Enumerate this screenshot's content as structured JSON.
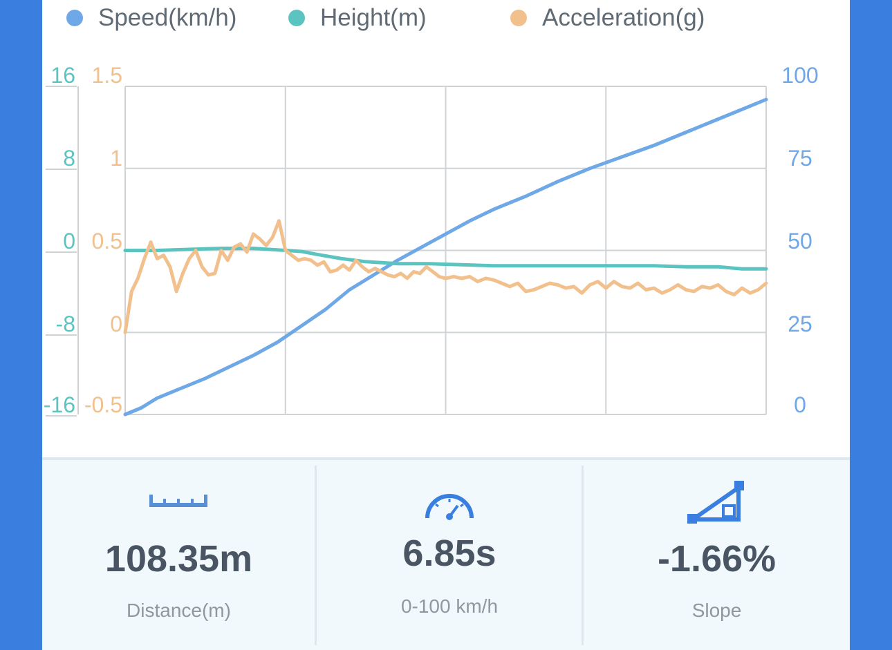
{
  "colors": {
    "speed": "#6fa8e6",
    "height": "#5cc4c0",
    "accel": "#f2c08c",
    "grid": "#cfd3d6",
    "accent": "#3a7fdf"
  },
  "legend": [
    {
      "label": "Speed(km/h)",
      "color": "#6fa8e6"
    },
    {
      "label": "Height(m)",
      "color": "#5cc4c0"
    },
    {
      "label": "Acceleration(g)",
      "color": "#f2c08c"
    }
  ],
  "chart_data": {
    "type": "line",
    "x_range": [
      0,
      4
    ],
    "axes": {
      "height_left": {
        "ticks": [
          "16",
          "8",
          "0",
          "-8",
          "-16"
        ],
        "range": [
          -16,
          16
        ]
      },
      "accel_left": {
        "ticks": [
          "1.5",
          "1",
          "0.5",
          "0",
          "-0.5"
        ],
        "range": [
          -0.5,
          1.5
        ]
      },
      "speed_right": {
        "ticks": [
          "100",
          "75",
          "50",
          "25",
          "0"
        ],
        "range": [
          0,
          100
        ]
      }
    },
    "grid": true,
    "series": [
      {
        "name": "Speed(km/h)",
        "axis": "speed_right",
        "x": [
          0,
          0.1,
          0.2,
          0.35,
          0.5,
          0.65,
          0.8,
          0.95,
          1.1,
          1.25,
          1.4,
          1.55,
          1.7,
          1.85,
          2.0,
          2.15,
          2.3,
          2.5,
          2.7,
          2.9,
          3.1,
          3.3,
          3.5,
          3.7,
          3.85,
          4.0
        ],
        "values": [
          0,
          2,
          5,
          8,
          11,
          14.5,
          18,
          22,
          27,
          32,
          38,
          42.5,
          47,
          51,
          55,
          59,
          62.5,
          66.5,
          71,
          75,
          78.5,
          82,
          86,
          90,
          93,
          96
        ]
      },
      {
        "name": "Height(m)",
        "axis": "height_left",
        "x": [
          0,
          0.2,
          0.4,
          0.6,
          0.8,
          1.0,
          1.1,
          1.2,
          1.35,
          1.5,
          1.7,
          1.9,
          2.1,
          2.3,
          2.5,
          2.7,
          2.9,
          3.1,
          3.3,
          3.5,
          3.7,
          3.85,
          4.0
        ],
        "values": [
          0,
          0,
          0.1,
          0.2,
          0.2,
          0,
          -0.1,
          -0.4,
          -0.8,
          -1.1,
          -1.3,
          -1.3,
          -1.4,
          -1.5,
          -1.5,
          -1.5,
          -1.5,
          -1.5,
          -1.5,
          -1.6,
          -1.6,
          -1.8,
          -1.8
        ]
      },
      {
        "name": "Acceleration(g)",
        "axis": "accel_left",
        "x": [
          0,
          0.04,
          0.08,
          0.12,
          0.16,
          0.2,
          0.24,
          0.28,
          0.32,
          0.36,
          0.4,
          0.44,
          0.48,
          0.52,
          0.56,
          0.6,
          0.64,
          0.68,
          0.72,
          0.76,
          0.8,
          0.84,
          0.88,
          0.92,
          0.96,
          1.0,
          1.04,
          1.08,
          1.12,
          1.16,
          1.2,
          1.24,
          1.28,
          1.32,
          1.36,
          1.4,
          1.44,
          1.48,
          1.52,
          1.56,
          1.6,
          1.64,
          1.68,
          1.72,
          1.76,
          1.8,
          1.84,
          1.88,
          1.92,
          1.96,
          2.0,
          2.05,
          2.1,
          2.15,
          2.2,
          2.25,
          2.3,
          2.35,
          2.4,
          2.45,
          2.5,
          2.55,
          2.6,
          2.65,
          2.7,
          2.75,
          2.8,
          2.85,
          2.9,
          2.95,
          3.0,
          3.05,
          3.1,
          3.15,
          3.2,
          3.25,
          3.3,
          3.35,
          3.4,
          3.45,
          3.5,
          3.55,
          3.6,
          3.65,
          3.7,
          3.75,
          3.8,
          3.85,
          3.9,
          3.95,
          4.0
        ],
        "values": [
          0.0,
          0.25,
          0.33,
          0.45,
          0.55,
          0.45,
          0.47,
          0.4,
          0.25,
          0.36,
          0.45,
          0.5,
          0.4,
          0.35,
          0.36,
          0.5,
          0.44,
          0.52,
          0.54,
          0.49,
          0.6,
          0.57,
          0.53,
          0.58,
          0.68,
          0.5,
          0.47,
          0.44,
          0.45,
          0.44,
          0.41,
          0.43,
          0.37,
          0.38,
          0.41,
          0.38,
          0.44,
          0.4,
          0.37,
          0.39,
          0.37,
          0.35,
          0.34,
          0.36,
          0.33,
          0.37,
          0.36,
          0.4,
          0.37,
          0.34,
          0.33,
          0.34,
          0.33,
          0.34,
          0.31,
          0.33,
          0.32,
          0.3,
          0.28,
          0.3,
          0.25,
          0.26,
          0.28,
          0.3,
          0.29,
          0.27,
          0.28,
          0.24,
          0.29,
          0.31,
          0.27,
          0.31,
          0.28,
          0.27,
          0.3,
          0.26,
          0.27,
          0.24,
          0.26,
          0.29,
          0.26,
          0.25,
          0.28,
          0.27,
          0.29,
          0.25,
          0.23,
          0.27,
          0.24,
          0.26,
          0.3
        ]
      }
    ]
  },
  "stats": [
    {
      "icon": "ruler-icon",
      "value": "108.35m",
      "label": "Distance(m)"
    },
    {
      "icon": "speedometer-icon",
      "value": "6.85s",
      "label": "0-100 km/h"
    },
    {
      "icon": "slope-icon",
      "value": "-1.66%",
      "label": "Slope"
    }
  ]
}
